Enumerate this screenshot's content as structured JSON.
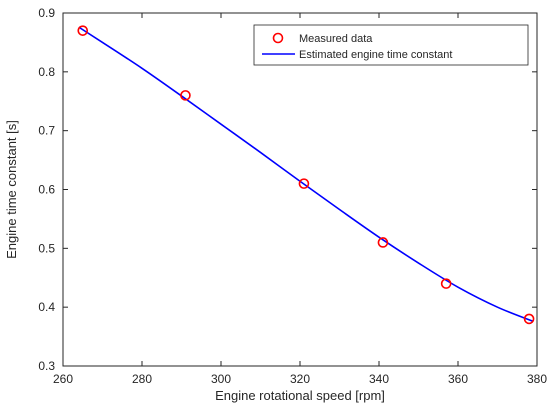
{
  "chart_data": {
    "type": "scatter",
    "xlabel": "Engine rotational speed [rpm]",
    "ylabel": "Engine time constant [s]",
    "xlim": [
      260,
      380
    ],
    "ylim": [
      0.3,
      0.9
    ],
    "x_ticks": [
      "260",
      "280",
      "300",
      "320",
      "340",
      "360",
      "380"
    ],
    "y_ticks": [
      "0.3",
      "0.4",
      "0.5",
      "0.6",
      "0.7",
      "0.8",
      "0.9"
    ],
    "x_tick_values": [
      260,
      280,
      300,
      320,
      340,
      360,
      380
    ],
    "y_tick_values": [
      0.3,
      0.4,
      0.5,
      0.6,
      0.7,
      0.8,
      0.9
    ],
    "grid": false,
    "legend_position": "top-right",
    "series": [
      {
        "name": "Measured data",
        "kind": "markers",
        "marker": "circle",
        "color": "#ff0000",
        "x": [
          265,
          291,
          321,
          341,
          357,
          378
        ],
        "y": [
          0.87,
          0.76,
          0.61,
          0.51,
          0.44,
          0.38
        ]
      },
      {
        "name": "Estimated engine time constant",
        "kind": "line",
        "color": "#0000ff",
        "x": [
          264,
          270,
          280,
          290,
          300,
          310,
          320,
          330,
          340,
          350,
          360,
          370,
          379
        ],
        "y": [
          0.876,
          0.85,
          0.806,
          0.759,
          0.711,
          0.663,
          0.614,
          0.566,
          0.519,
          0.475,
          0.434,
          0.4,
          0.376
        ]
      }
    ]
  }
}
